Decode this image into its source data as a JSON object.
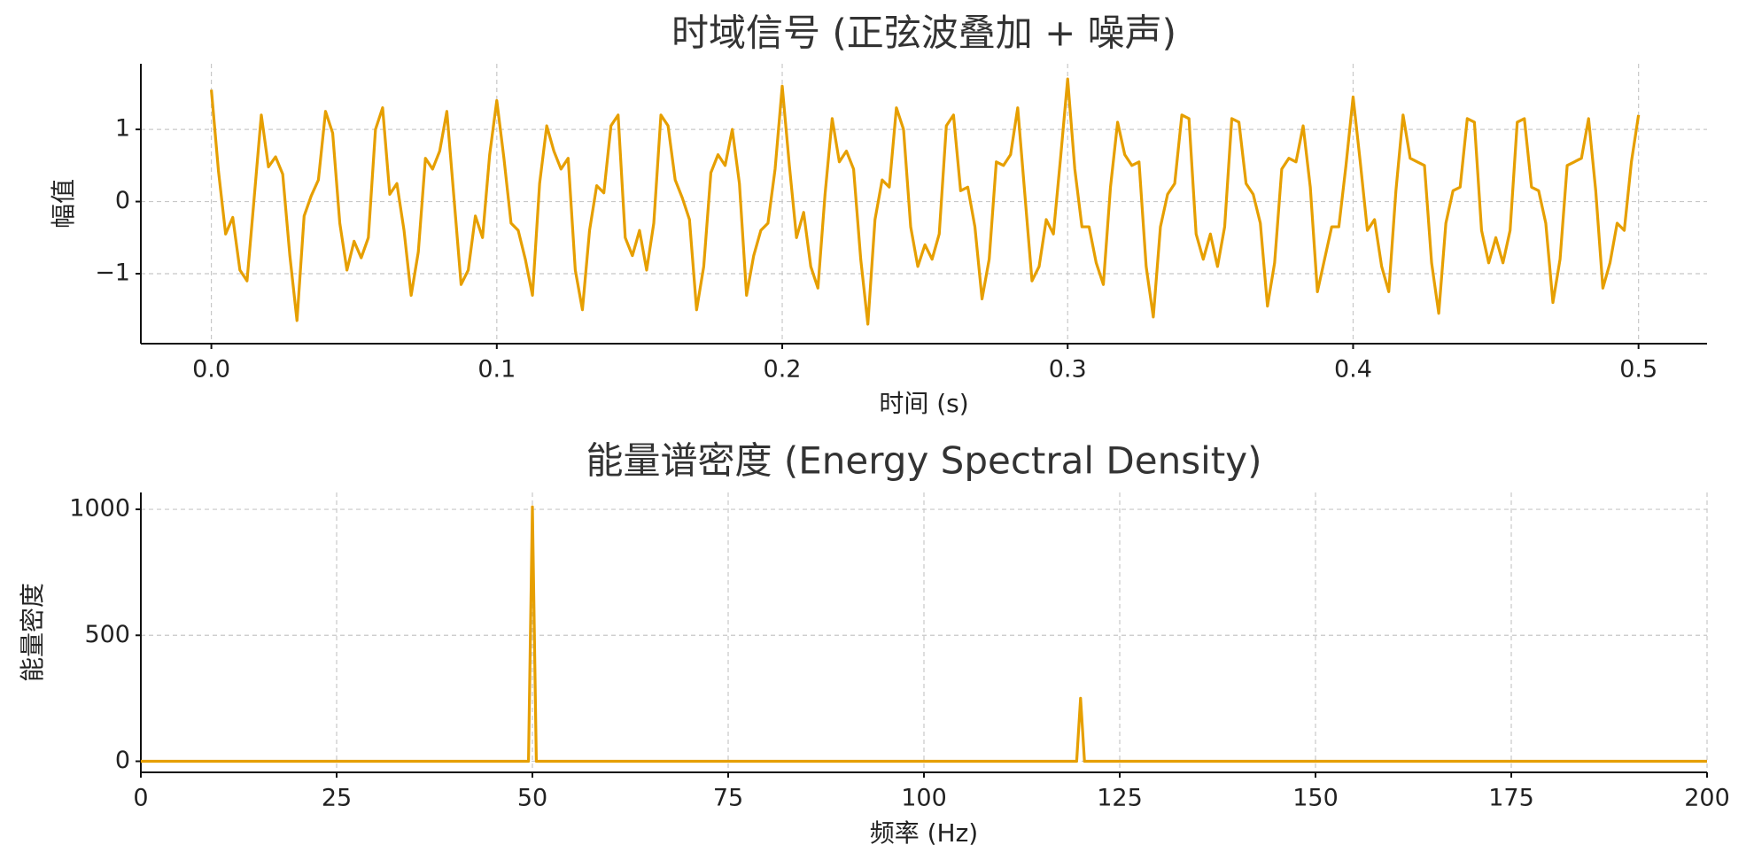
{
  "chart_data": [
    {
      "type": "line",
      "title": "时域信号 (正弦波叠加 + 噪声)",
      "xlabel": "时间 (s)",
      "ylabel": "幅值",
      "color": "#E69F00",
      "grid": true,
      "xlim": [
        -0.0247,
        0.524
      ],
      "ylim": [
        -1.97,
        1.91
      ],
      "xticks": [
        {
          "value": 0,
          "label": "0.0"
        },
        0.1,
        0.2,
        0.3,
        0.4,
        0.5
      ],
      "yticks": [
        {
          "value": -1,
          "label": "−1"
        },
        0,
        1
      ],
      "x": [
        0,
        0.0025,
        0.005,
        0.0075,
        0.01,
        0.0125,
        0.015,
        0.0175,
        0.02,
        0.0225,
        0.025,
        0.0275,
        0.03,
        0.0325,
        0.035,
        0.0375,
        0.04,
        0.0425,
        0.045,
        0.0475,
        0.05,
        0.0525,
        0.055,
        0.0575,
        0.06,
        0.0625,
        0.065,
        0.0675,
        0.07,
        0.0725,
        0.075,
        0.0775,
        0.08,
        0.0825,
        0.085,
        0.0875,
        0.09,
        0.0925,
        0.095,
        0.0975,
        0.1,
        0.1025,
        0.105,
        0.1075,
        0.11,
        0.1125,
        0.115,
        0.1175,
        0.12,
        0.1225,
        0.125,
        0.1275,
        0.13,
        0.1325,
        0.135,
        0.1375,
        0.14,
        0.1425,
        0.145,
        0.1475,
        0.15,
        0.1525,
        0.155,
        0.1575,
        0.16,
        0.1625,
        0.165,
        0.1675,
        0.17,
        0.1725,
        0.175,
        0.1775,
        0.18,
        0.1825,
        0.185,
        0.1875,
        0.19,
        0.1925,
        0.195,
        0.1975,
        0.2,
        0.2025,
        0.205,
        0.2075,
        0.21,
        0.2125,
        0.215,
        0.2175,
        0.22,
        0.2225,
        0.225,
        0.2275,
        0.23,
        0.2325,
        0.235,
        0.2375,
        0.24,
        0.2425,
        0.245,
        0.2475,
        0.25,
        0.2525,
        0.255,
        0.2575,
        0.26,
        0.2625,
        0.265,
        0.2675,
        0.27,
        0.2725,
        0.275,
        0.2775,
        0.28,
        0.2825,
        0.285,
        0.2875,
        0.29,
        0.2925,
        0.295,
        0.2975,
        0.3,
        0.3025,
        0.305,
        0.3075,
        0.31,
        0.3125,
        0.315,
        0.3175,
        0.32,
        0.3225,
        0.325,
        0.3275,
        0.33,
        0.3325,
        0.335,
        0.3375,
        0.34,
        0.3425,
        0.345,
        0.3475,
        0.35,
        0.3525,
        0.355,
        0.3575,
        0.36,
        0.3625,
        0.365,
        0.3675,
        0.37,
        0.3725,
        0.375,
        0.3775,
        0.38,
        0.3825,
        0.385,
        0.3875,
        0.39,
        0.3925,
        0.395,
        0.3975,
        0.4,
        0.4025,
        0.405,
        0.4075,
        0.41,
        0.4125,
        0.415,
        0.4175,
        0.42,
        0.4225,
        0.425,
        0.4275,
        0.43,
        0.4325,
        0.435,
        0.4375,
        0.44,
        0.4425,
        0.445,
        0.4475,
        0.45,
        0.4525,
        0.455,
        0.4575,
        0.46,
        0.4625,
        0.465,
        0.4675,
        0.47,
        0.4725,
        0.475,
        0.4775,
        0.48,
        0.4825,
        0.485,
        0.4875,
        0.49,
        0.4925,
        0.495,
        0.4975,
        0.5
      ],
      "values": [
        1.55,
        0.42,
        -0.45,
        -0.22,
        -0.95,
        -1.1,
        0.05,
        1.2,
        0.48,
        0.62,
        0.38,
        -0.75,
        -1.65,
        -0.2,
        0.08,
        0.3,
        1.25,
        0.95,
        -0.3,
        -0.95,
        -0.55,
        -0.78,
        -0.5,
        1.0,
        1.3,
        0.1,
        0.25,
        -0.4,
        -1.3,
        -0.7,
        0.6,
        0.45,
        0.7,
        1.25,
        0.05,
        -1.15,
        -0.95,
        -0.2,
        -0.5,
        0.65,
        1.4,
        0.6,
        -0.3,
        -0.4,
        -0.8,
        -1.3,
        0.25,
        1.05,
        0.7,
        0.45,
        0.6,
        -0.95,
        -1.5,
        -0.4,
        0.22,
        0.12,
        1.05,
        1.2,
        -0.5,
        -0.75,
        -0.4,
        -0.95,
        -0.3,
        1.2,
        1.05,
        0.3,
        0.05,
        -0.25,
        -1.5,
        -0.9,
        0.4,
        0.65,
        0.5,
        1.0,
        0.25,
        -1.3,
        -0.75,
        -0.4,
        -0.3,
        0.45,
        1.6,
        0.5,
        -0.5,
        -0.15,
        -0.9,
        -1.2,
        0.1,
        1.15,
        0.55,
        0.7,
        0.45,
        -0.8,
        -1.7,
        -0.25,
        0.3,
        0.2,
        1.3,
        1.0,
        -0.35,
        -0.9,
        -0.6,
        -0.8,
        -0.45,
        1.05,
        1.2,
        0.15,
        0.2,
        -0.35,
        -1.35,
        -0.8,
        0.55,
        0.5,
        0.65,
        1.3,
        0.1,
        -1.1,
        -0.9,
        -0.25,
        -0.45,
        0.6,
        1.7,
        0.45,
        -0.35,
        -0.35,
        -0.85,
        -1.15,
        0.2,
        1.1,
        0.65,
        0.5,
        0.55,
        -0.9,
        -1.6,
        -0.35,
        0.1,
        0.25,
        1.2,
        1.15,
        -0.45,
        -0.8,
        -0.45,
        -0.9,
        -0.35,
        1.15,
        1.1,
        0.25,
        0.1,
        -0.3,
        -1.45,
        -0.85,
        0.45,
        0.6,
        0.55,
        1.05,
        0.2,
        -1.25,
        -0.8,
        -0.35,
        -0.35,
        0.5,
        1.45,
        0.55,
        -0.4,
        -0.25,
        -0.9,
        -1.25,
        0.15,
        1.2,
        0.6,
        0.55,
        0.5,
        -0.85,
        -1.55,
        -0.3,
        0.15,
        0.2,
        1.15,
        1.1,
        -0.4,
        -0.85,
        -0.5,
        -0.85,
        -0.4,
        1.1,
        1.15,
        0.2,
        0.15,
        -0.3,
        -1.4,
        -0.8,
        0.5,
        0.55,
        0.6,
        1.15,
        0.15,
        -1.2,
        -0.85,
        -0.3,
        -0.4,
        0.55,
        1.2
      ]
    },
    {
      "type": "line",
      "title": "能量谱密度 (Energy Spectral Density)",
      "xlabel": "频率 (Hz)",
      "ylabel": "能量密度",
      "color": "#E69F00",
      "grid": true,
      "xlim": [
        0,
        200
      ],
      "ylim": [
        -44,
        1067
      ],
      "xticks": [
        0,
        25,
        50,
        75,
        100,
        125,
        150,
        175,
        200
      ],
      "yticks": [
        0,
        500,
        1000
      ],
      "x": [
        0,
        49.5,
        50,
        50.5,
        119.5,
        120,
        120.5,
        200
      ],
      "values": [
        0,
        0,
        1010,
        0,
        0,
        250,
        0,
        0
      ]
    }
  ]
}
